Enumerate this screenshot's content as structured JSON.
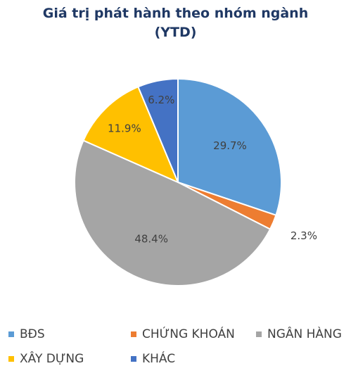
{
  "chart_data": {
    "type": "pie",
    "title_line1": "Giá trị phát hành theo nhóm ngành",
    "title_line2": "(YTD)",
    "slices": [
      {
        "name": "BĐS",
        "value": 29.7,
        "label": "29.7%",
        "color": "#5b9bd5"
      },
      {
        "name": "CHỨNG KHOÁN",
        "value": 2.3,
        "label": "2.3%",
        "color": "#ed7d31"
      },
      {
        "name": "NGÂN HÀNG",
        "value": 48.4,
        "label": "48.4%",
        "color": "#a5a5a5"
      },
      {
        "name": "XÂY DỰNG",
        "value": 11.9,
        "label": "11.9%",
        "color": "#ffc000"
      },
      {
        "name": "KHÁC",
        "value": 6.2,
        "label": "6.2%",
        "color": "#4472c4"
      }
    ],
    "legend_position": "bottom"
  }
}
